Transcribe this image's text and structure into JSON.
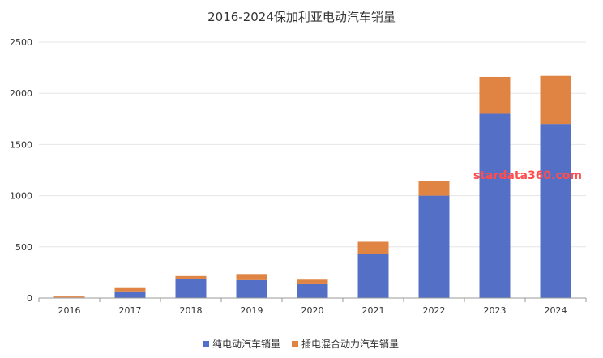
{
  "chart_data": {
    "type": "bar",
    "stacked": true,
    "title": "2016-2024保加利亚电动汽车销量",
    "categories": [
      "2016",
      "2017",
      "2018",
      "2019",
      "2020",
      "2021",
      "2022",
      "2023",
      "2024"
    ],
    "series": [
      {
        "name": "纯电动汽车销量",
        "color": "#5470c6",
        "values": [
          5,
          65,
          190,
          175,
          135,
          430,
          1000,
          1800,
          1700
        ]
      },
      {
        "name": "插电混合动力汽车销量",
        "color": "#e08443",
        "values": [
          10,
          40,
          25,
          60,
          45,
          120,
          140,
          360,
          470
        ]
      }
    ],
    "ylim": [
      0,
      2500
    ],
    "yticks": [
      "0",
      "500",
      "1000",
      "1500",
      "2000",
      "2500"
    ],
    "grid": true,
    "legend_position": "bottom-center",
    "watermark": "stardata360.com",
    "colors": {
      "grid": "#e6e6e6",
      "axis": "#999999",
      "watermark": "#ff4d4f"
    }
  }
}
